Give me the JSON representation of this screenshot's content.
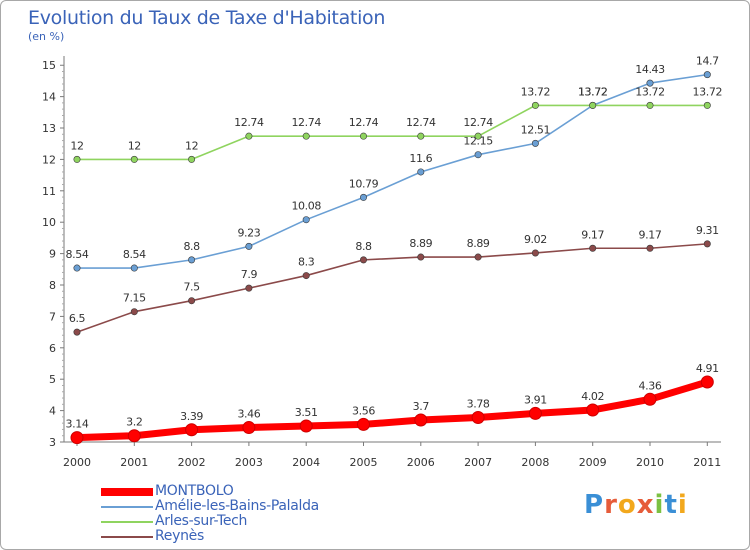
{
  "title": "Evolution du Taux de Taxe d'Habitation",
  "unit_label": "(en %)",
  "logo_text": "Proxiti",
  "chart_data": {
    "type": "line",
    "title": "Evolution du Taux de Taxe d'Habitation",
    "ylabel": "(en %)",
    "xlabel": "",
    "categories": [
      "2000",
      "2001",
      "2002",
      "2003",
      "2004",
      "2005",
      "2006",
      "2007",
      "2008",
      "2009",
      "2010",
      "2011"
    ],
    "yticks": [
      "3",
      "4",
      "5",
      "6",
      "7",
      "8",
      "9",
      "10",
      "11",
      "12",
      "13",
      "14",
      "15"
    ],
    "ylim": [
      3,
      15
    ],
    "grid": false,
    "legend_position": "bottom-left",
    "series": [
      {
        "name": "MONTBOLO",
        "color": "#ff0000",
        "values": [
          3.14,
          3.2,
          3.39,
          3.46,
          3.51,
          3.56,
          3.7,
          3.78,
          3.91,
          4.02,
          4.36,
          4.91
        ],
        "labels": [
          "3.14",
          "3.2",
          "3.39",
          "3.46",
          "3.51",
          "3.56",
          "3.7",
          "3.78",
          "3.91",
          "4.02",
          "4.36",
          "4.91"
        ]
      },
      {
        "name": "Amélie-les-Bains-Palalda",
        "color": "#6a9fd4",
        "values": [
          8.54,
          8.54,
          8.8,
          9.23,
          10.08,
          10.79,
          11.6,
          12.15,
          12.51,
          13.72,
          14.43,
          14.7
        ],
        "labels": [
          "8.54",
          "8.54",
          "8.8",
          "9.23",
          "10.08",
          "10.79",
          "11.6",
          "12.15",
          "12.51",
          "13.72",
          "14.43",
          "14.7"
        ]
      },
      {
        "name": "Arles-sur-Tech",
        "color": "#8fd45f",
        "values": [
          12,
          12,
          12,
          12.74,
          12.74,
          12.74,
          12.74,
          12.74,
          13.72,
          13.72,
          13.72,
          13.72
        ],
        "labels": [
          "12",
          "12",
          "12",
          "12.74",
          "12.74",
          "12.74",
          "12.74",
          "12.74",
          "13.72",
          "13.72",
          "13.72",
          "13.72"
        ]
      },
      {
        "name": "Reynès",
        "color": "#8b4a4a",
        "values": [
          6.5,
          7.15,
          7.5,
          7.9,
          8.3,
          8.8,
          8.89,
          8.89,
          9.02,
          9.17,
          9.17,
          9.31
        ],
        "labels": [
          "6.5",
          "7.15",
          "7.5",
          "7.9",
          "8.3",
          "8.8",
          "8.89",
          "8.89",
          "9.02",
          "9.17",
          "9.17",
          "9.31"
        ]
      }
    ]
  }
}
